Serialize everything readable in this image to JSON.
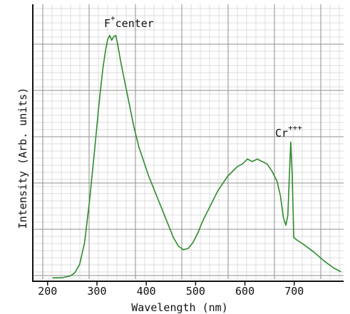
{
  "chart_data": {
    "type": "line",
    "title": "",
    "xlabel": "Wavelength (nm)",
    "ylabel": "Intensity (Arb. units)",
    "xlim": [
      170,
      800
    ],
    "ylim": [
      0,
      1.0
    ],
    "x_ticks": [
      "200",
      "300",
      "400",
      "500",
      "600",
      "700"
    ],
    "grid": true,
    "y_tick_labels_shown": false,
    "annotations": [
      {
        "base": "F",
        "sup": "+",
        "text": "center",
        "x": 325,
        "y": 1.0
      },
      {
        "base": "Cr",
        "sup": "+++",
        "text": "",
        "x": 693,
        "y": 0.56
      }
    ],
    "series": [
      {
        "color": "#2e8b2e",
        "points": [
          [
            210,
            0.005
          ],
          [
            230,
            0.006
          ],
          [
            245,
            0.012
          ],
          [
            255,
            0.025
          ],
          [
            265,
            0.06
          ],
          [
            275,
            0.15
          ],
          [
            285,
            0.32
          ],
          [
            295,
            0.52
          ],
          [
            305,
            0.73
          ],
          [
            312,
            0.86
          ],
          [
            318,
            0.94
          ],
          [
            322,
            0.98
          ],
          [
            326,
            0.995
          ],
          [
            330,
            0.975
          ],
          [
            334,
            0.99
          ],
          [
            338,
            0.995
          ],
          [
            342,
            0.96
          ],
          [
            348,
            0.89
          ],
          [
            355,
            0.82
          ],
          [
            365,
            0.72
          ],
          [
            375,
            0.62
          ],
          [
            385,
            0.54
          ],
          [
            395,
            0.48
          ],
          [
            405,
            0.42
          ],
          [
            415,
            0.37
          ],
          [
            425,
            0.32
          ],
          [
            435,
            0.27
          ],
          [
            445,
            0.22
          ],
          [
            455,
            0.17
          ],
          [
            465,
            0.135
          ],
          [
            475,
            0.12
          ],
          [
            485,
            0.125
          ],
          [
            495,
            0.15
          ],
          [
            505,
            0.19
          ],
          [
            515,
            0.24
          ],
          [
            525,
            0.28
          ],
          [
            535,
            0.32
          ],
          [
            545,
            0.36
          ],
          [
            555,
            0.39
          ],
          [
            565,
            0.42
          ],
          [
            575,
            0.44
          ],
          [
            585,
            0.46
          ],
          [
            595,
            0.47
          ],
          [
            605,
            0.49
          ],
          [
            615,
            0.48
          ],
          [
            625,
            0.49
          ],
          [
            635,
            0.48
          ],
          [
            645,
            0.47
          ],
          [
            655,
            0.44
          ],
          [
            665,
            0.4
          ],
          [
            672,
            0.34
          ],
          [
            678,
            0.25
          ],
          [
            683,
            0.22
          ],
          [
            687,
            0.26
          ],
          [
            690,
            0.42
          ],
          [
            693,
            0.56
          ],
          [
            696,
            0.42
          ],
          [
            699,
            0.17
          ],
          [
            705,
            0.16
          ],
          [
            720,
            0.14
          ],
          [
            740,
            0.11
          ],
          [
            760,
            0.075
          ],
          [
            780,
            0.045
          ],
          [
            795,
            0.03
          ]
        ]
      }
    ]
  }
}
